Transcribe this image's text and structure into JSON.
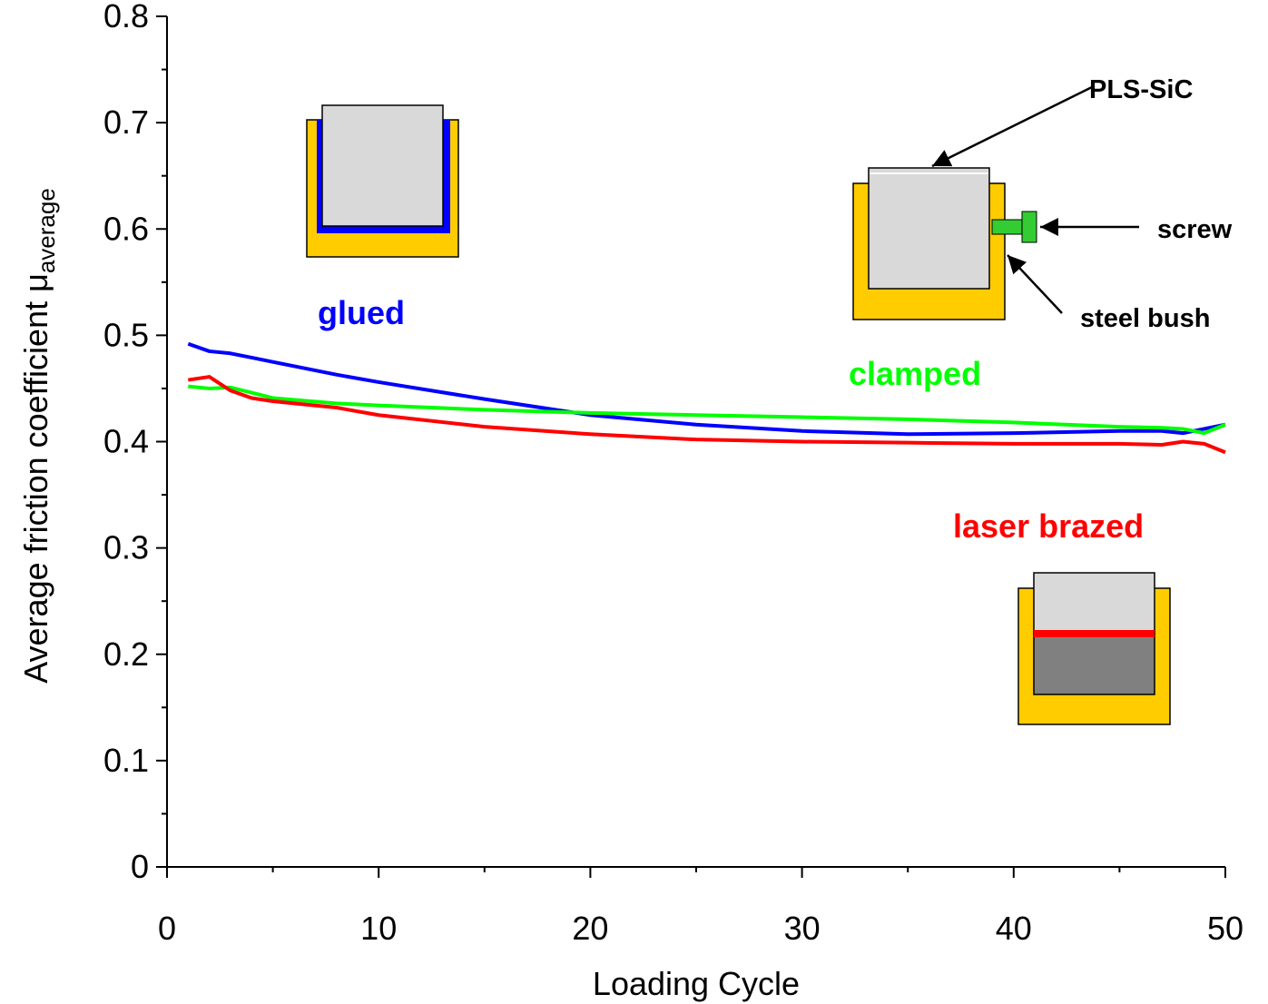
{
  "chart_data": {
    "type": "line",
    "xlabel": "Loading Cycle",
    "ylabel": "Average friction coefficient μ",
    "ylabel_sub": "average",
    "x": [
      1,
      2,
      3,
      4,
      5,
      8,
      10,
      15,
      20,
      25,
      30,
      35,
      40,
      45,
      47,
      48,
      49,
      50
    ],
    "series": [
      {
        "name": "glued",
        "color": "#0000ff",
        "values": [
          0.492,
          0.485,
          0.483,
          0.479,
          0.475,
          0.463,
          0.456,
          0.44,
          0.425,
          0.416,
          0.41,
          0.407,
          0.408,
          0.41,
          0.41,
          0.408,
          0.412,
          0.416
        ]
      },
      {
        "name": "clamped",
        "color": "#00ff00",
        "values": [
          0.452,
          0.45,
          0.451,
          0.446,
          0.441,
          0.436,
          0.434,
          0.43,
          0.427,
          0.425,
          0.423,
          0.421,
          0.418,
          0.414,
          0.413,
          0.412,
          0.408,
          0.416
        ]
      },
      {
        "name": "laser brazed",
        "color": "#ff0000",
        "values": [
          0.458,
          0.461,
          0.448,
          0.441,
          0.438,
          0.432,
          0.425,
          0.414,
          0.407,
          0.402,
          0.4,
          0.399,
          0.398,
          0.398,
          0.397,
          0.4,
          0.398,
          0.39
        ]
      }
    ],
    "annotations": [
      "PLS-SiC",
      "screw",
      "steel bush"
    ],
    "xlim": [
      0,
      50
    ],
    "xticks": [
      0,
      10,
      20,
      30,
      40,
      50
    ],
    "xminor": [
      5,
      15,
      25,
      35,
      45
    ],
    "ylim": [
      0,
      0.8
    ],
    "yticks": [
      0,
      0.1,
      0.2,
      0.3,
      0.4,
      0.5,
      0.6,
      0.7,
      0.8
    ],
    "yminor": [
      0.05,
      0.15,
      0.25,
      0.35,
      0.45,
      0.55,
      0.65,
      0.75
    ],
    "grid": false
  }
}
